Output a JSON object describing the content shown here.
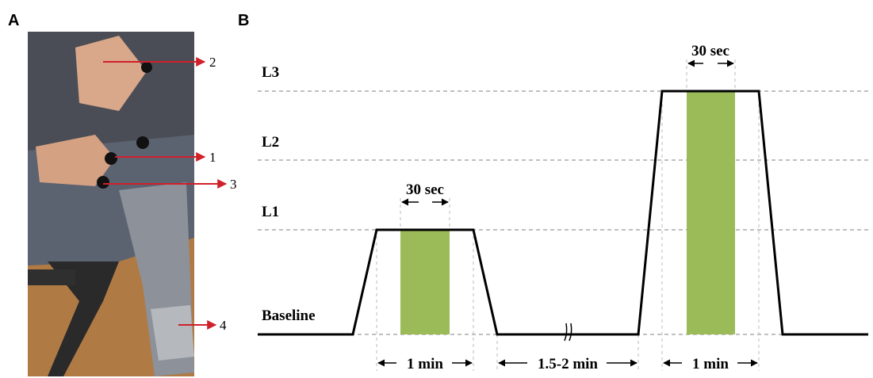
{
  "panel_a": {
    "label": "A",
    "callouts": [
      "2",
      "1",
      "3",
      "4"
    ]
  },
  "panel_b": {
    "label": "B",
    "levels": [
      "L3",
      "L2",
      "L1",
      "Baseline"
    ],
    "hold_labels": [
      "30 sec",
      "30 sec"
    ],
    "interval_labels": [
      "1 min",
      "1.5-2 min",
      "1 min"
    ]
  }
}
